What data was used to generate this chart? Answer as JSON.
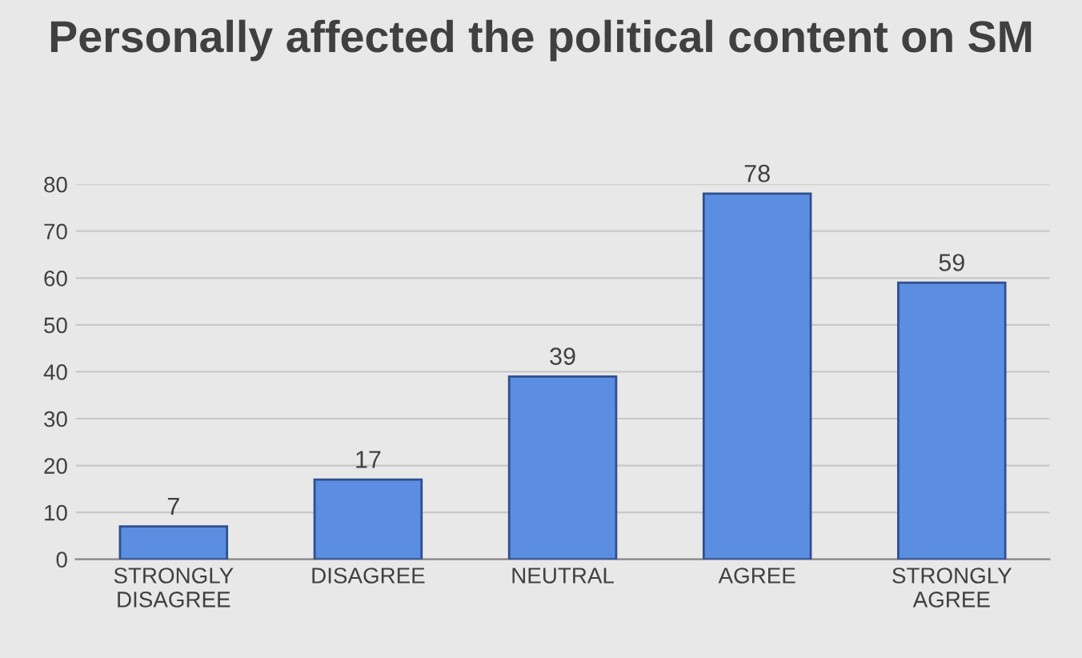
{
  "chart_data": {
    "type": "bar",
    "title": "Personally affected the political content on SM",
    "categories": [
      "STRONGLY DISAGREE",
      "DISAGREE",
      "NEUTRAL",
      "AGREE",
      "STRONGLY AGREE"
    ],
    "values": [
      7,
      17,
      39,
      78,
      59
    ],
    "color": "#5b8ee0",
    "ylim": [
      0,
      80
    ],
    "yticks": [
      0,
      10,
      20,
      30,
      40,
      50,
      60,
      70,
      80
    ],
    "grid": "y",
    "data_labels": true
  }
}
